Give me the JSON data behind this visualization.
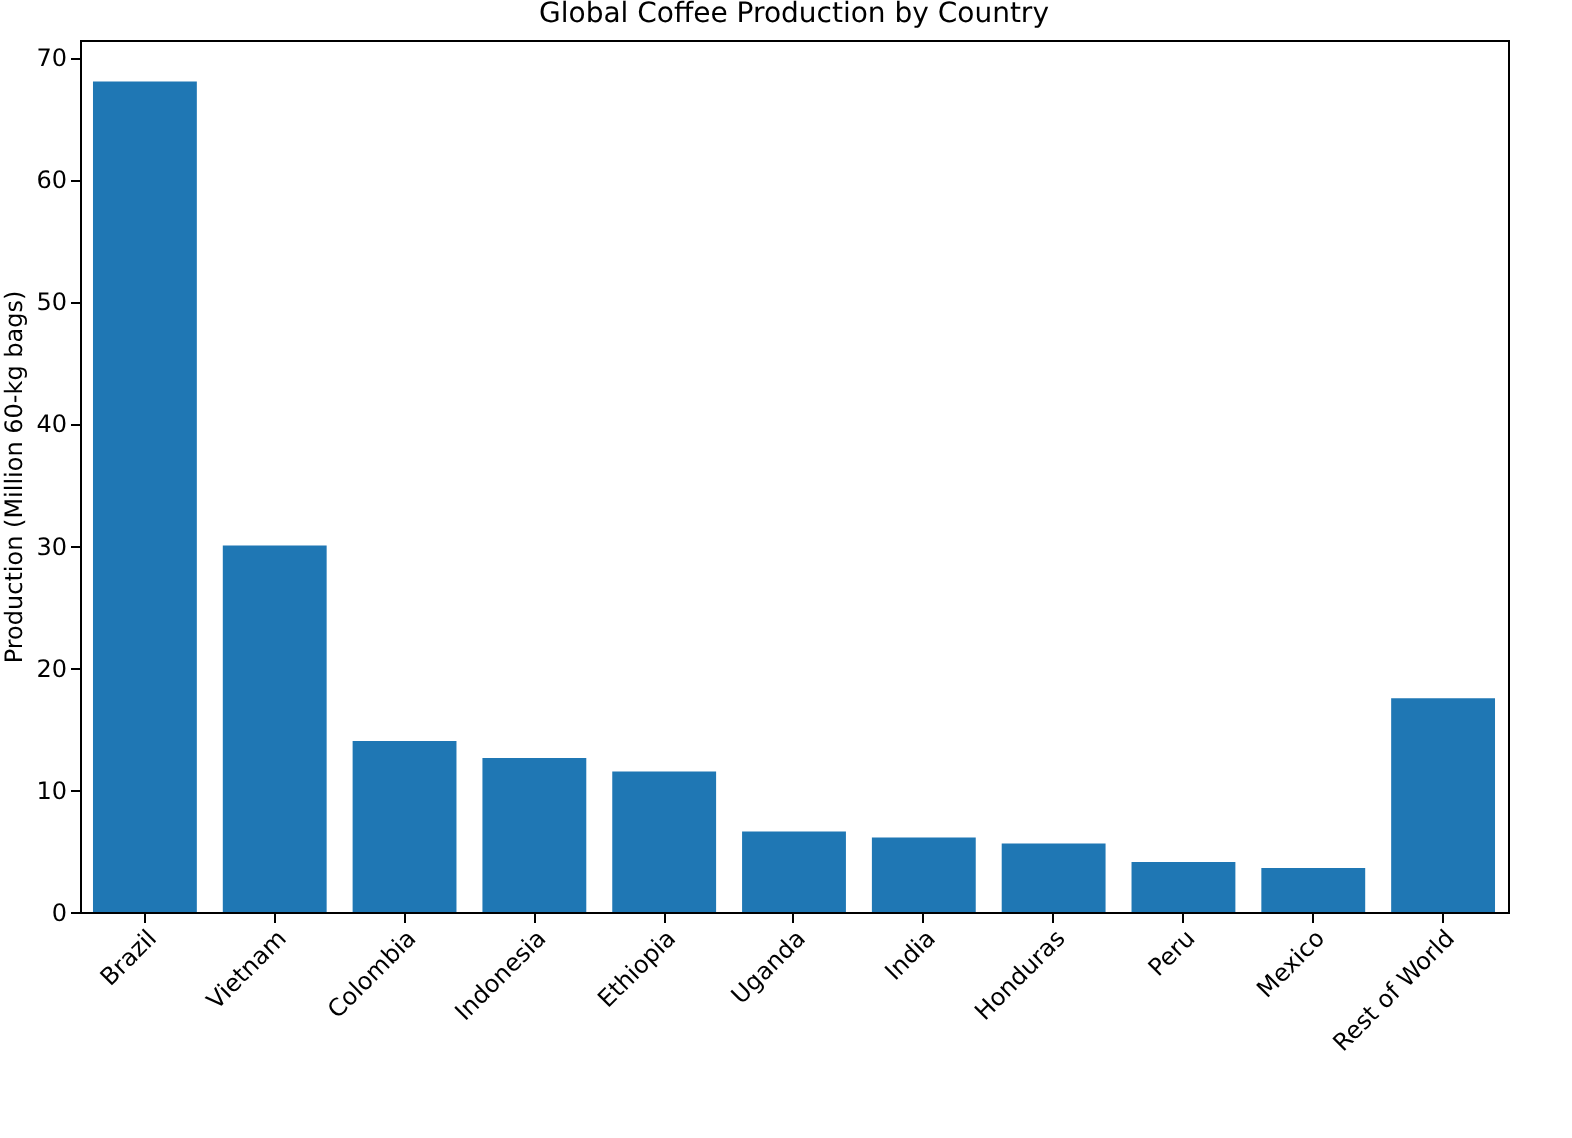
{
  "chart_data": {
    "type": "bar",
    "title": "Global Coffee Production by Country",
    "ylabel": "Production (Million 60-kg bags)",
    "categories": [
      "Brazil",
      "Vietnam",
      "Colombia",
      "Indonesia",
      "Ethiopia",
      "Uganda",
      "India",
      "Honduras",
      "Peru",
      "Mexico",
      "Rest of World"
    ],
    "values": [
      68,
      30,
      14,
      12.6,
      11.5,
      6.6,
      6.1,
      5.6,
      4.1,
      3.6,
      17.5
    ],
    "color": "#1f77b4",
    "ylim": [
      0,
      71.4
    ],
    "yticks": [
      0,
      10,
      20,
      30,
      40,
      50,
      60,
      70
    ],
    "grid": false
  }
}
